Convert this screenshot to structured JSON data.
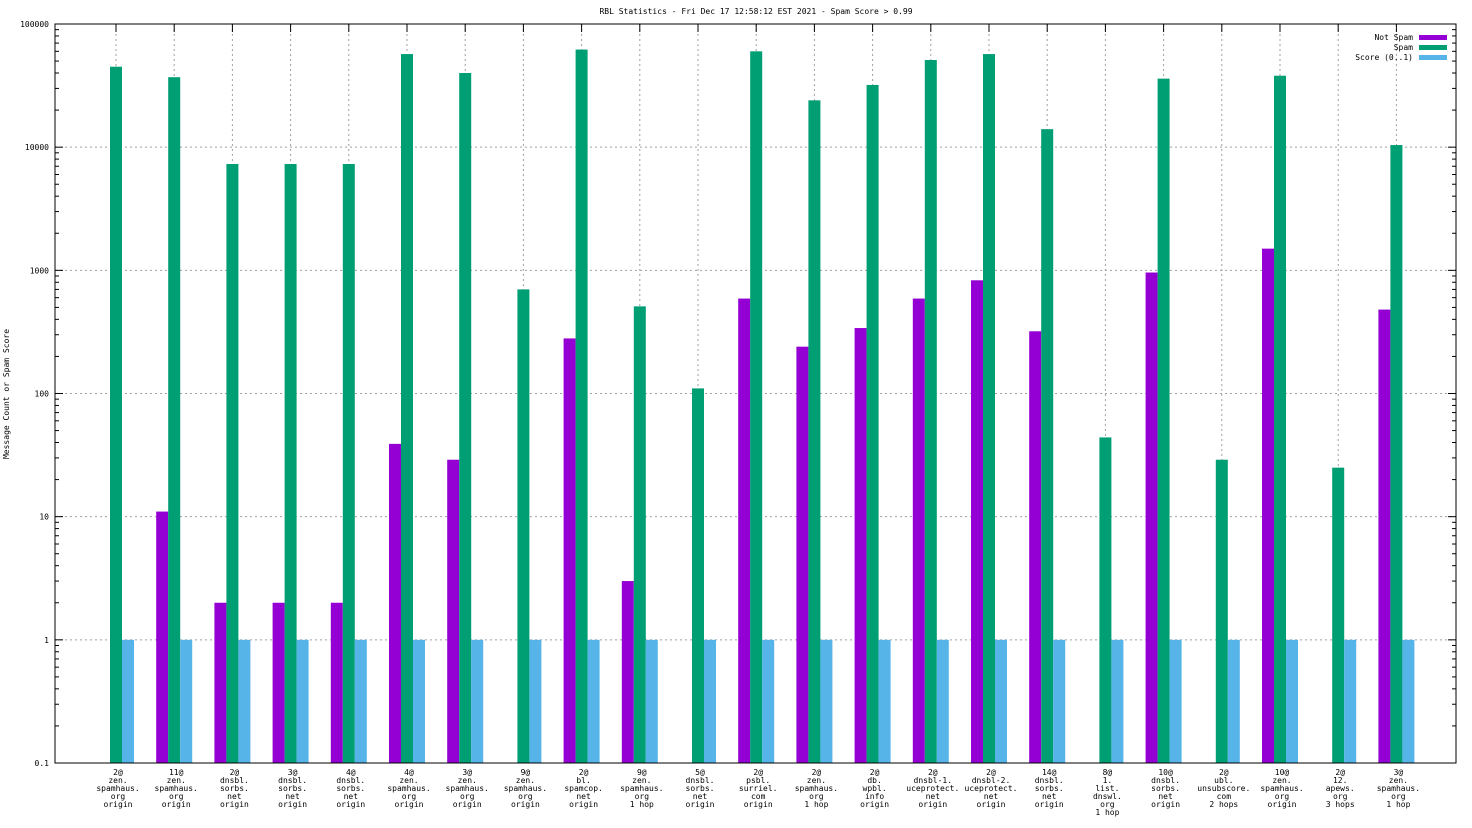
{
  "chart_data": {
    "type": "bar",
    "title": "RBL Statistics - Fri Dec 17 12:58:12 EST 2021 - Spam Score > 0.99",
    "xlabel": "",
    "ylabel": "Message Count or Spam Score",
    "yscale": "log",
    "ylim": [
      0.1,
      100000
    ],
    "yticks": [
      0.1,
      1,
      10,
      100,
      1000,
      10000,
      100000
    ],
    "ytick_labels": [
      "0.1",
      "1",
      "10",
      "100",
      "1000",
      "10000",
      "100000"
    ],
    "grid": true,
    "legend_position": "top-right",
    "categories": [
      [
        "2@",
        "zen.",
        "spamhaus.",
        "org",
        "origin"
      ],
      [
        "11@",
        "zen.",
        "spamhaus.",
        "org",
        "origin"
      ],
      [
        "2@",
        "dnsbl.",
        "sorbs.",
        "net",
        "origin"
      ],
      [
        "3@",
        "dnsbl.",
        "sorbs.",
        "net",
        "origin"
      ],
      [
        "4@",
        "dnsbl.",
        "sorbs.",
        "net",
        "origin"
      ],
      [
        "4@",
        "zen.",
        "spamhaus.",
        "org",
        "origin"
      ],
      [
        "3@",
        "zen.",
        "spamhaus.",
        "org",
        "origin"
      ],
      [
        "9@",
        "zen.",
        "spamhaus.",
        "org",
        "origin"
      ],
      [
        "2@",
        "bl.",
        "spamcop.",
        "net",
        "origin"
      ],
      [
        "9@",
        "zen.",
        "spamhaus.",
        "org",
        "1 hop"
      ],
      [
        "5@",
        "dnsbl.",
        "sorbs.",
        "net",
        "origin"
      ],
      [
        "2@",
        "psbl.",
        "surriel.",
        "com",
        "origin"
      ],
      [
        "2@",
        "zen.",
        "spamhaus.",
        "org",
        "1 hop"
      ],
      [
        "2@",
        "db.",
        "wpbl.",
        "info",
        "origin"
      ],
      [
        "2@",
        "dnsbl-1.",
        "uceprotect.",
        "net",
        "origin"
      ],
      [
        "2@",
        "dnsbl-2.",
        "uceprotect.",
        "net",
        "origin"
      ],
      [
        "14@",
        "dnsbl.",
        "sorbs.",
        "net",
        "origin"
      ],
      [
        "8@",
        "1.",
        "list.",
        "dnswl.",
        "org",
        "1 hop"
      ],
      [
        "10@",
        "dnsbl.",
        "sorbs.",
        "net",
        "origin"
      ],
      [
        "2@",
        "ubl.",
        "unsubscore.",
        "com",
        "2 hops"
      ],
      [
        "10@",
        "zen.",
        "spamhaus.",
        "org",
        "origin"
      ],
      [
        "2@",
        "12.",
        "apews.",
        "org",
        "3 hops"
      ],
      [
        "3@",
        "zen.",
        "spamhaus.",
        "org",
        "1 hop"
      ]
    ],
    "series": [
      {
        "name": "Not Spam",
        "color": "#9400d3",
        "values": [
          null,
          11,
          2,
          2,
          2,
          39,
          29,
          null,
          280,
          3,
          null,
          590,
          240,
          340,
          590,
          830,
          320,
          null,
          960,
          null,
          1500,
          null,
          480
        ]
      },
      {
        "name": "Spam",
        "color": "#009e73",
        "values": [
          45000,
          37000,
          7300,
          7300,
          7300,
          57000,
          40000,
          700,
          62000,
          510,
          110,
          60000,
          24000,
          32000,
          51000,
          57000,
          14000,
          44,
          36000,
          29,
          38000,
          25,
          10400
        ]
      },
      {
        "name": "Score (0..1)",
        "color": "#56b4e9",
        "values": [
          1,
          1,
          1,
          1,
          1,
          1,
          1,
          1,
          1,
          1,
          1,
          1,
          1,
          1,
          1,
          1,
          1,
          1,
          1,
          1,
          1,
          1,
          1
        ]
      }
    ]
  }
}
